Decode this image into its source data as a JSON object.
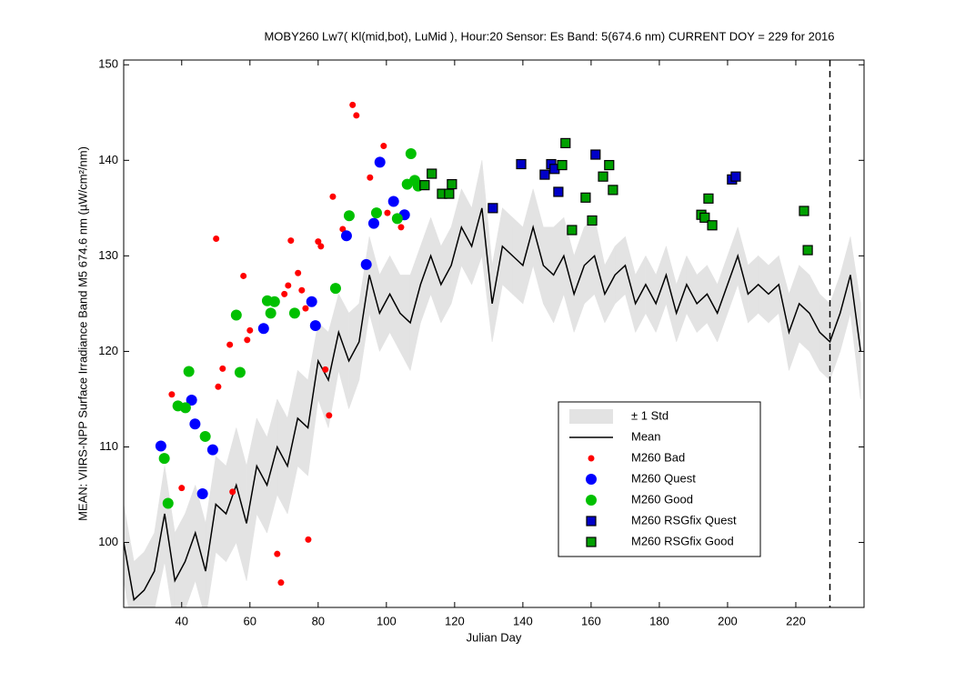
{
  "chart_data": {
    "type": "line",
    "title": "MOBY260   Lw7( Kl(mid,bot), LuMid ),   Hour:20 Sensor: Es Band: 5(674.6 nm)   CURRENT DOY = 229 for 2016",
    "x_label": "Julian Day",
    "y_label": "MEAN: VIIRS-NPP Surface Irradiance Band M5 674.6 nm (µW/cm²/nm)",
    "xlim": [
      23,
      240
    ],
    "ylim": [
      93.2,
      150.5
    ],
    "xticks": [
      40,
      60,
      80,
      100,
      120,
      140,
      160,
      180,
      200,
      220
    ],
    "yticks": [
      100,
      110,
      120,
      130,
      140,
      150
    ],
    "vline": 230,
    "legend": "lower right",
    "series": [
      {
        "name": "± 1 Std",
        "kind": "band",
        "color": "#e3e3e3",
        "x": [
          23,
          26,
          29,
          32,
          35,
          38,
          41,
          44,
          47,
          50,
          53,
          56,
          59,
          62,
          65,
          68,
          71,
          74,
          77,
          80,
          83,
          86,
          89,
          92,
          95,
          98,
          101,
          104,
          107,
          110,
          113,
          116,
          119,
          122,
          125,
          128,
          131,
          134,
          137,
          140,
          143,
          146,
          149,
          152,
          155,
          158,
          161,
          164,
          167,
          170,
          173,
          176,
          179,
          182,
          185,
          188,
          191,
          194,
          197,
          200,
          203,
          206,
          209,
          212,
          215,
          218,
          221,
          224,
          227,
          230,
          233,
          236,
          239
        ],
        "lower": [
          96,
          90,
          91,
          93,
          98,
          91,
          93,
          96,
          92,
          99,
          98,
          100,
          96,
          103,
          101,
          105,
          103,
          108,
          107,
          115,
          112,
          118,
          114,
          117,
          124,
          120,
          122,
          120,
          118,
          123,
          126,
          123,
          125,
          129,
          127,
          130,
          121,
          127,
          126,
          125,
          129,
          125,
          123,
          126,
          122,
          125,
          126,
          123,
          125,
          126,
          122,
          124,
          122,
          125,
          121,
          124,
          122,
          123,
          121,
          124,
          127,
          123,
          124,
          123,
          124,
          118,
          121,
          120,
          118,
          117,
          120,
          124,
          115
        ],
        "upper": [
          104,
          98,
          99,
          101,
          108,
          101,
          103,
          106,
          102,
          109,
          108,
          112,
          108,
          113,
          111,
          115,
          113,
          118,
          117,
          123,
          122,
          126,
          124,
          125,
          132,
          128,
          130,
          128,
          128,
          131,
          134,
          131,
          133,
          137,
          135,
          140,
          129,
          135,
          134,
          133,
          137,
          133,
          133,
          134,
          130,
          133,
          134,
          129,
          131,
          132,
          128,
          130,
          128,
          131,
          127,
          130,
          128,
          129,
          127,
          130,
          133,
          129,
          130,
          129,
          130,
          126,
          129,
          128,
          126,
          125,
          128,
          132,
          125
        ]
      },
      {
        "name": "Mean",
        "kind": "line",
        "color": "#000000",
        "x": [
          23,
          26,
          29,
          32,
          35,
          38,
          41,
          44,
          47,
          50,
          53,
          56,
          59,
          62,
          65,
          68,
          71,
          74,
          77,
          80,
          83,
          86,
          89,
          92,
          95,
          98,
          101,
          104,
          107,
          110,
          113,
          116,
          119,
          122,
          125,
          128,
          131,
          134,
          137,
          140,
          143,
          146,
          149,
          152,
          155,
          158,
          161,
          164,
          167,
          170,
          173,
          176,
          179,
          182,
          185,
          188,
          191,
          194,
          197,
          200,
          203,
          206,
          209,
          212,
          215,
          218,
          221,
          224,
          227,
          230,
          233,
          236,
          239
        ],
        "values": [
          100,
          94,
          95,
          97,
          103,
          96,
          98,
          101,
          97,
          104,
          103,
          106,
          102,
          108,
          106,
          110,
          108,
          113,
          112,
          119,
          117,
          122,
          119,
          121,
          128,
          124,
          126,
          124,
          123,
          127,
          130,
          127,
          129,
          133,
          131,
          135,
          125,
          131,
          130,
          129,
          133,
          129,
          128,
          130,
          126,
          129,
          130,
          126,
          128,
          129,
          125,
          127,
          125,
          128,
          124,
          127,
          125,
          126,
          124,
          127,
          130,
          126,
          127,
          126,
          127,
          122,
          125,
          124,
          122,
          121,
          124,
          128,
          120
        ]
      },
      {
        "name": "M260 Bad",
        "kind": "scatter",
        "marker": "circle",
        "size": 3.5,
        "color": "#ff0000",
        "x": [
          37.1,
          40,
          50.1,
          50.7,
          52,
          54.1,
          54.9,
          58.1,
          59.2,
          60,
          68,
          69.1,
          70.1,
          71.2,
          72,
          74.1,
          75.2,
          76.3,
          77.1,
          80,
          80.8,
          82.1,
          83.2,
          84.3,
          87.2,
          90.1,
          91.2,
          95.2,
          99.2,
          100.3,
          104.3
        ],
        "values": [
          115.5,
          105.7,
          131.8,
          116.3,
          118.2,
          120.7,
          105.3,
          127.9,
          121.2,
          122.2,
          98.8,
          95.8,
          126,
          126.9,
          131.6,
          128.2,
          126.4,
          124.5,
          100.3,
          131.5,
          131,
          118.1,
          113.3,
          136.2,
          132.8,
          145.8,
          144.7,
          138.2,
          141.5,
          134.5,
          133
        ]
      },
      {
        "name": "M260 Quest",
        "kind": "scatter",
        "marker": "circle",
        "size": 6,
        "color": "#0000ff",
        "x": [
          33.9,
          42.9,
          43.9,
          46.1,
          49.1,
          64,
          78.1,
          79.2,
          88.3,
          94.1,
          96.3,
          98.1,
          102.1,
          105.3
        ],
        "values": [
          110.1,
          114.9,
          112.4,
          105.1,
          109.7,
          122.4,
          125.2,
          122.7,
          132.1,
          129.1,
          133.4,
          139.8,
          135.7,
          134.3
        ]
      },
      {
        "name": "M260 Good",
        "kind": "scatter",
        "marker": "circle",
        "size": 6,
        "color": "#00c000",
        "x": [
          34.9,
          36,
          38.9,
          41.1,
          42.1,
          46.9,
          56,
          57.1,
          65.1,
          66.1,
          67.2,
          73.1,
          85.1,
          89.1,
          97.1,
          103.2,
          106.1,
          107.2,
          108.3,
          109.3
        ],
        "values": [
          108.8,
          104.1,
          114.3,
          114.1,
          117.9,
          111.1,
          123.8,
          117.8,
          125.3,
          124,
          125.2,
          124,
          126.6,
          134.2,
          134.5,
          133.9,
          137.5,
          140.7,
          137.9,
          137.3
        ]
      },
      {
        "name": "M260 RSGfix Quest",
        "kind": "scatter",
        "marker": "square",
        "size": 5,
        "color": "#0000c8",
        "x": [
          131.2,
          139.5,
          146.4,
          148.3,
          149.3,
          150.4,
          161.3,
          201.3,
          202.4
        ],
        "values": [
          135,
          139.6,
          138.5,
          139.6,
          139.1,
          136.7,
          140.6,
          138,
          138.3
        ]
      },
      {
        "name": "M260 RSGfix Good",
        "kind": "scatter",
        "marker": "square",
        "size": 5,
        "color": "#00a000",
        "x": [
          111.2,
          113.3,
          116.3,
          118.4,
          119.2,
          151.5,
          152.5,
          154.4,
          158.4,
          160.3,
          163.5,
          165.3,
          166.4,
          192.3,
          193.3,
          194.4,
          195.5,
          222.4,
          223.5
        ],
        "values": [
          137.4,
          138.6,
          136.5,
          136.5,
          137.5,
          139.5,
          141.8,
          132.7,
          136.1,
          133.7,
          138.3,
          139.5,
          136.9,
          134.3,
          134,
          136,
          133.2,
          134.7,
          130.6
        ]
      }
    ]
  }
}
